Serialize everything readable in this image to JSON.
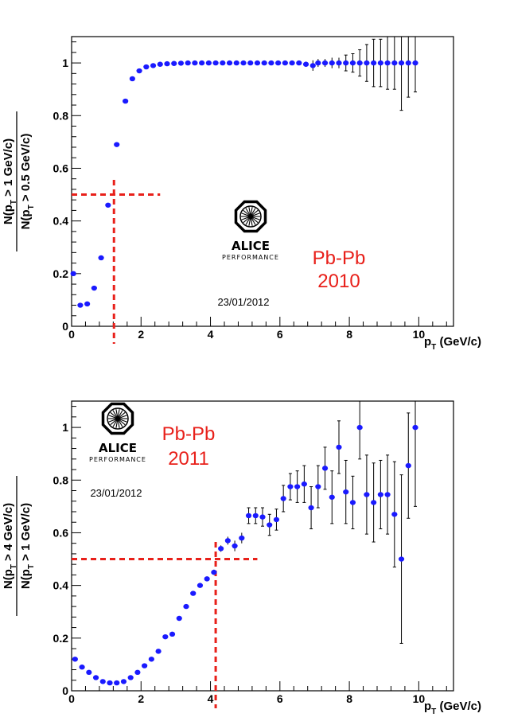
{
  "chart_data": [
    {
      "type": "scatter",
      "xlabel_main": "p",
      "xlabel_sub": "T",
      "xlabel_unit": "(GeV/c)",
      "ylabel_num": "N(p",
      "ylabel_num_sub": "T",
      "ylabel_num_rest": " > 1 GeV/c)",
      "ylabel_den": "N(p",
      "ylabel_den_sub": "T",
      "ylabel_den_rest": " > 0.5 GeV/c)",
      "xlim": [
        0,
        11
      ],
      "ylim": [
        0,
        1.1
      ],
      "xticks": [
        "0",
        "2",
        "4",
        "6",
        "8",
        "10"
      ],
      "yticks": [
        "0",
        "0.2",
        "0.4",
        "0.6",
        "0.8",
        "1"
      ],
      "system_label": "Pb-Pb",
      "year_label": "2010",
      "logo_text": "ALICE",
      "logo_sub": "PERFORMANCE",
      "date": "23/01/2012",
      "colors": {
        "marker": "#1a1aff",
        "guide": "#e8201a",
        "error": "#000000"
      },
      "guide": {
        "x": 1.22,
        "y": 0.5,
        "x_end": 2.55,
        "y_bottom": -0.08
      },
      "points": [
        [
          0.05,
          0.2,
          0.005
        ],
        [
          0.25,
          0.08,
          0.004
        ],
        [
          0.45,
          0.085,
          0.004
        ],
        [
          0.65,
          0.145,
          0.004
        ],
        [
          0.85,
          0.26,
          0.004
        ],
        [
          1.05,
          0.46,
          0.005
        ],
        [
          1.3,
          0.69,
          0.005
        ],
        [
          1.55,
          0.855,
          0.005
        ],
        [
          1.75,
          0.94,
          0.004
        ],
        [
          1.95,
          0.97,
          0.003
        ],
        [
          2.15,
          0.985,
          0.003
        ],
        [
          2.35,
          0.99,
          0.003
        ],
        [
          2.55,
          0.995,
          0.003
        ],
        [
          2.75,
          0.997,
          0.003
        ],
        [
          2.95,
          0.998,
          0.003
        ],
        [
          3.15,
          0.999,
          0.003
        ],
        [
          3.35,
          1.0,
          0.003
        ],
        [
          3.55,
          1.0,
          0.003
        ],
        [
          3.75,
          1.0,
          0.003
        ],
        [
          3.95,
          1.0,
          0.003
        ],
        [
          4.15,
          1.0,
          0.003
        ],
        [
          4.35,
          1.0,
          0.003
        ],
        [
          4.55,
          1.0,
          0.003
        ],
        [
          4.75,
          1.0,
          0.003
        ],
        [
          4.95,
          1.0,
          0.003
        ],
        [
          5.15,
          1.0,
          0.003
        ],
        [
          5.35,
          1.0,
          0.003
        ],
        [
          5.55,
          1.0,
          0.003
        ],
        [
          5.75,
          1.0,
          0.003
        ],
        [
          5.95,
          1.0,
          0.003
        ],
        [
          6.15,
          1.0,
          0.004
        ],
        [
          6.35,
          1.0,
          0.004
        ],
        [
          6.55,
          1.0,
          0.005
        ],
        [
          6.75,
          0.995,
          0.01
        ],
        [
          6.95,
          0.99,
          0.02
        ],
        [
          7.1,
          1.0,
          0.015
        ],
        [
          7.3,
          1.0,
          0.015
        ],
        [
          7.5,
          1.0,
          0.02
        ],
        [
          7.7,
          1.0,
          0.02
        ],
        [
          7.9,
          1.0,
          0.03
        ],
        [
          8.1,
          1.0,
          0.035
        ],
        [
          8.3,
          1.0,
          0.05
        ],
        [
          8.5,
          1.0,
          0.07
        ],
        [
          8.7,
          1.0,
          0.09
        ],
        [
          8.9,
          1.0,
          0.09
        ],
        [
          9.1,
          1.0,
          0.1
        ],
        [
          9.3,
          1.0,
          0.1
        ],
        [
          9.5,
          1.0,
          0.18
        ],
        [
          9.7,
          1.0,
          0.13
        ],
        [
          9.9,
          1.0,
          0.11
        ]
      ]
    },
    {
      "type": "scatter",
      "xlabel_main": "p",
      "xlabel_sub": "T",
      "xlabel_unit": "(GeV/c)",
      "ylabel_num": "N(p",
      "ylabel_num_sub": "T",
      "ylabel_num_rest": " > 4 GeV/c)",
      "ylabel_den": "N(p",
      "ylabel_den_sub": "T",
      "ylabel_den_rest": " > 1 GeV/c)",
      "xlim": [
        0,
        11
      ],
      "ylim": [
        0,
        1.1
      ],
      "xticks": [
        "0",
        "2",
        "4",
        "6",
        "8",
        "10"
      ],
      "yticks": [
        "0",
        "0.2",
        "0.4",
        "0.6",
        "0.8",
        "1"
      ],
      "system_label": "Pb-Pb",
      "year_label": "2011",
      "logo_text": "ALICE",
      "logo_sub": "PERFORMANCE",
      "date": "23/01/2012",
      "colors": {
        "marker": "#1a1aff",
        "guide": "#e8201a",
        "error": "#000000"
      },
      "guide": {
        "x": 4.15,
        "y": 0.5,
        "x_end": 5.35,
        "y_bottom": -0.08
      },
      "points": [
        [
          0.1,
          0.12,
          0.005
        ],
        [
          0.3,
          0.09,
          0.004
        ],
        [
          0.5,
          0.07,
          0.004
        ],
        [
          0.7,
          0.05,
          0.004
        ],
        [
          0.9,
          0.035,
          0.003
        ],
        [
          1.1,
          0.03,
          0.003
        ],
        [
          1.3,
          0.03,
          0.003
        ],
        [
          1.5,
          0.035,
          0.003
        ],
        [
          1.7,
          0.05,
          0.003
        ],
        [
          1.9,
          0.07,
          0.003
        ],
        [
          2.1,
          0.095,
          0.004
        ],
        [
          2.3,
          0.12,
          0.004
        ],
        [
          2.5,
          0.15,
          0.004
        ],
        [
          2.7,
          0.205,
          0.005
        ],
        [
          2.9,
          0.215,
          0.005
        ],
        [
          3.1,
          0.275,
          0.006
        ],
        [
          3.3,
          0.32,
          0.007
        ],
        [
          3.5,
          0.37,
          0.008
        ],
        [
          3.7,
          0.4,
          0.008
        ],
        [
          3.9,
          0.425,
          0.009
        ],
        [
          4.1,
          0.45,
          0.01
        ],
        [
          4.3,
          0.54,
          0.012
        ],
        [
          4.5,
          0.57,
          0.015
        ],
        [
          4.7,
          0.55,
          0.02
        ],
        [
          4.9,
          0.58,
          0.02
        ],
        [
          5.1,
          0.665,
          0.03
        ],
        [
          5.3,
          0.665,
          0.03
        ],
        [
          5.5,
          0.66,
          0.035
        ],
        [
          5.7,
          0.63,
          0.04
        ],
        [
          5.9,
          0.65,
          0.04
        ],
        [
          6.1,
          0.73,
          0.05
        ],
        [
          6.3,
          0.775,
          0.05
        ],
        [
          6.5,
          0.775,
          0.06
        ],
        [
          6.7,
          0.785,
          0.07
        ],
        [
          6.9,
          0.695,
          0.08
        ],
        [
          7.1,
          0.775,
          0.08
        ],
        [
          7.3,
          0.845,
          0.08
        ],
        [
          7.5,
          0.735,
          0.1
        ],
        [
          7.7,
          0.925,
          0.1
        ],
        [
          7.9,
          0.755,
          0.12
        ],
        [
          8.1,
          0.715,
          0.1
        ],
        [
          8.3,
          1.0,
          0.12
        ],
        [
          8.5,
          0.745,
          0.15
        ],
        [
          8.7,
          0.715,
          0.15
        ],
        [
          8.9,
          0.745,
          0.13
        ],
        [
          9.1,
          0.745,
          0.15
        ],
        [
          9.3,
          0.67,
          0.2
        ],
        [
          9.5,
          0.5,
          0.32
        ],
        [
          9.7,
          0.855,
          0.2
        ],
        [
          9.9,
          1.0,
          0.3
        ]
      ]
    }
  ]
}
